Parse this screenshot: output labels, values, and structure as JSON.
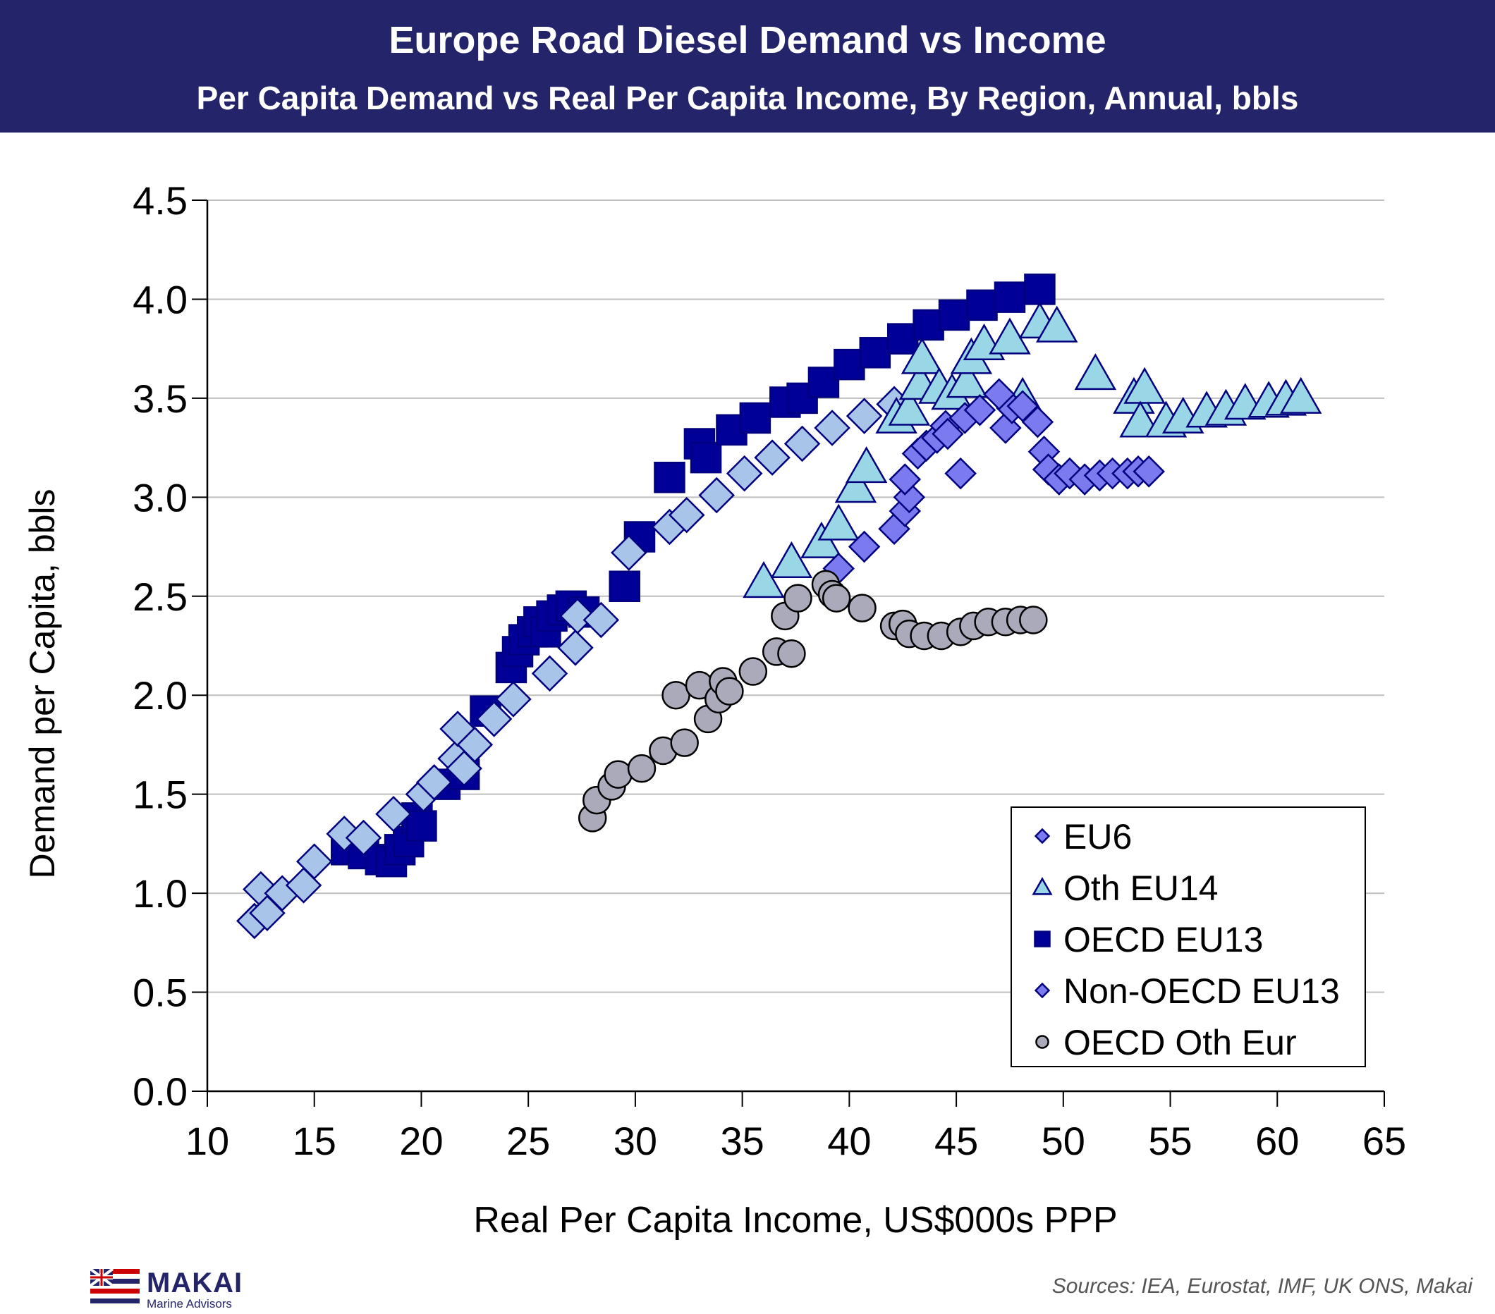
{
  "header": {
    "title": "Europe Road Diesel Demand vs Income",
    "subtitle": "Per Capita Demand vs Real Per Capita Income, By Region, Annual, bbls"
  },
  "footer": {
    "logo_name": "MAKAI",
    "logo_tagline": "Marine Advisors",
    "sources": "Sources: IEA, Eurostat, IMF, UK ONS, Makai"
  },
  "colors": {
    "header_bg": "#24246b",
    "eu6": "#7b7bef",
    "oth_eu14": "#99d6e6",
    "oecd_eu13": "#000099",
    "non_oecd_eu13": "#a9c4e9",
    "oecd_oth_eur": "#aaaabb",
    "marker_stroke": "#00007f"
  },
  "chart_data": {
    "type": "scatter",
    "title": "Europe Road Diesel Demand vs Income",
    "subtitle": "Per Capita Demand vs Real Per Capita Income, By Region, Annual, bbls",
    "xlabel": "Real Per Capita Income, US$000s PPP",
    "ylabel": "Demand per Capita, bbls",
    "xlim": [
      10,
      65
    ],
    "ylim": [
      0,
      4.5
    ],
    "x_ticks": [
      "10",
      "15",
      "20",
      "25",
      "30",
      "35",
      "40",
      "45",
      "50",
      "55",
      "60",
      "65"
    ],
    "y_ticks": [
      "0.0",
      "0.5",
      "1.0",
      "1.5",
      "2.0",
      "2.5",
      "3.0",
      "3.5",
      "4.0",
      "4.5"
    ],
    "grid": "horizontal",
    "legend_position": "bottom-right",
    "series": [
      {
        "name": "OECD EU13",
        "marker": "square",
        "points": [
          [
            16.5,
            1.22
          ],
          [
            17.3,
            1.2
          ],
          [
            18.1,
            1.17
          ],
          [
            18.6,
            1.16
          ],
          [
            19.0,
            1.22
          ],
          [
            19.4,
            1.26
          ],
          [
            19.8,
            1.38
          ],
          [
            20.0,
            1.34
          ],
          [
            21.1,
            1.55
          ],
          [
            22.0,
            1.6
          ],
          [
            23.0,
            1.92
          ],
          [
            24.2,
            2.14
          ],
          [
            24.5,
            2.22
          ],
          [
            24.8,
            2.28
          ],
          [
            25.2,
            2.32
          ],
          [
            25.5,
            2.37
          ],
          [
            25.8,
            2.32
          ],
          [
            26.1,
            2.4
          ],
          [
            26.6,
            2.43
          ],
          [
            27.0,
            2.45
          ],
          [
            27.6,
            2.42
          ],
          [
            29.5,
            2.55
          ],
          [
            30.2,
            2.8
          ],
          [
            31.6,
            3.1
          ],
          [
            33.0,
            3.27
          ],
          [
            33.3,
            3.2
          ],
          [
            34.5,
            3.34
          ],
          [
            35.6,
            3.4
          ],
          [
            37.0,
            3.48
          ],
          [
            37.8,
            3.5
          ],
          [
            38.8,
            3.58
          ],
          [
            40.0,
            3.67
          ],
          [
            41.2,
            3.73
          ],
          [
            42.5,
            3.8
          ],
          [
            43.7,
            3.87
          ],
          [
            44.9,
            3.92
          ],
          [
            46.2,
            3.97
          ],
          [
            47.5,
            4.01
          ],
          [
            48.9,
            4.05
          ]
        ]
      },
      {
        "name": "Non-OECD EU13",
        "marker": "diamond",
        "points": [
          [
            12.2,
            0.86
          ],
          [
            12.5,
            1.02
          ],
          [
            12.8,
            0.9
          ],
          [
            13.5,
            1.0
          ],
          [
            14.5,
            1.04
          ],
          [
            15.0,
            1.16
          ],
          [
            16.4,
            1.3
          ],
          [
            17.3,
            1.28
          ],
          [
            18.7,
            1.4
          ],
          [
            20.1,
            1.5
          ],
          [
            20.6,
            1.56
          ],
          [
            21.6,
            1.68
          ],
          [
            22.0,
            1.63
          ],
          [
            21.7,
            1.83
          ],
          [
            22.5,
            1.75
          ],
          [
            23.4,
            1.88
          ],
          [
            24.3,
            1.98
          ],
          [
            26.0,
            2.11
          ],
          [
            27.2,
            2.24
          ],
          [
            27.3,
            2.4
          ],
          [
            28.4,
            2.38
          ],
          [
            29.7,
            2.72
          ],
          [
            31.6,
            2.85
          ],
          [
            32.4,
            2.91
          ],
          [
            33.8,
            3.01
          ],
          [
            35.1,
            3.12
          ],
          [
            36.4,
            3.2
          ],
          [
            37.8,
            3.27
          ],
          [
            39.2,
            3.35
          ],
          [
            40.7,
            3.41
          ],
          [
            42.1,
            3.47
          ]
        ]
      },
      {
        "name": "Oth EU14",
        "marker": "triangle",
        "points": [
          [
            36.0,
            2.57
          ],
          [
            37.3,
            2.67
          ],
          [
            38.7,
            2.77
          ],
          [
            39.5,
            2.86
          ],
          [
            40.3,
            3.05
          ],
          [
            40.8,
            3.15
          ],
          [
            42.2,
            3.4
          ],
          [
            42.8,
            3.44
          ],
          [
            43.3,
            3.57
          ],
          [
            43.4,
            3.7
          ],
          [
            44.2,
            3.55
          ],
          [
            44.8,
            3.52
          ],
          [
            45.5,
            3.58
          ],
          [
            45.7,
            3.7
          ],
          [
            46.3,
            3.77
          ],
          [
            47.5,
            3.8
          ],
          [
            48.9,
            3.88
          ],
          [
            49.7,
            3.86
          ],
          [
            48.1,
            3.5
          ],
          [
            51.5,
            3.62
          ],
          [
            53.3,
            3.5
          ],
          [
            53.8,
            3.55
          ],
          [
            53.6,
            3.38
          ],
          [
            54.8,
            3.38
          ],
          [
            55.6,
            3.4
          ],
          [
            56.7,
            3.43
          ],
          [
            57.6,
            3.44
          ],
          [
            58.5,
            3.47
          ],
          [
            59.6,
            3.48
          ],
          [
            60.4,
            3.49
          ],
          [
            61.1,
            3.5
          ]
        ]
      },
      {
        "name": "EU6",
        "marker": "diamond",
        "points": [
          [
            39.5,
            2.64
          ],
          [
            40.7,
            2.75
          ],
          [
            42.1,
            2.84
          ],
          [
            42.6,
            2.93
          ],
          [
            42.8,
            3.0
          ],
          [
            42.6,
            3.09
          ],
          [
            43.2,
            3.22
          ],
          [
            43.6,
            3.26
          ],
          [
            44.1,
            3.3
          ],
          [
            44.5,
            3.36
          ],
          [
            44.6,
            3.32
          ],
          [
            45.4,
            3.4
          ],
          [
            45.2,
            3.12
          ],
          [
            46.1,
            3.44
          ],
          [
            47.3,
            3.35
          ],
          [
            47.6,
            3.45
          ],
          [
            48.8,
            3.38
          ],
          [
            49.1,
            3.23
          ],
          [
            49.3,
            3.14
          ],
          [
            49.8,
            3.09
          ],
          [
            50.3,
            3.12
          ],
          [
            51.0,
            3.09
          ],
          [
            51.7,
            3.11
          ],
          [
            52.3,
            3.12
          ],
          [
            53.0,
            3.12
          ],
          [
            53.5,
            3.13
          ],
          [
            54.0,
            3.13
          ],
          [
            47.0,
            3.52
          ],
          [
            48.1,
            3.46
          ]
        ]
      },
      {
        "name": "OECD Oth Eur",
        "marker": "circle",
        "points": [
          [
            28.0,
            1.38
          ],
          [
            28.2,
            1.47
          ],
          [
            28.9,
            1.54
          ],
          [
            29.2,
            1.6
          ],
          [
            30.3,
            1.63
          ],
          [
            31.3,
            1.72
          ],
          [
            32.3,
            1.76
          ],
          [
            31.9,
            2.0
          ],
          [
            33.0,
            2.05
          ],
          [
            33.4,
            1.88
          ],
          [
            33.9,
            1.98
          ],
          [
            34.1,
            2.07
          ],
          [
            34.4,
            2.02
          ],
          [
            35.5,
            2.12
          ],
          [
            36.6,
            2.22
          ],
          [
            37.0,
            2.4
          ],
          [
            37.3,
            2.21
          ],
          [
            37.6,
            2.49
          ],
          [
            38.9,
            2.56
          ],
          [
            39.2,
            2.51
          ],
          [
            39.4,
            2.49
          ],
          [
            40.6,
            2.44
          ],
          [
            42.1,
            2.35
          ],
          [
            42.5,
            2.36
          ],
          [
            42.8,
            2.31
          ],
          [
            43.5,
            2.3
          ],
          [
            44.3,
            2.3
          ],
          [
            45.2,
            2.32
          ],
          [
            45.8,
            2.35
          ],
          [
            46.5,
            2.37
          ],
          [
            47.3,
            2.37
          ],
          [
            48.0,
            2.38
          ],
          [
            48.6,
            2.38
          ]
        ]
      }
    ],
    "legend": [
      {
        "label": "EU6",
        "marker": "diamond"
      },
      {
        "label": "Oth EU14",
        "marker": "triangle"
      },
      {
        "label": "OECD EU13",
        "marker": "square"
      },
      {
        "label": "Non-OECD EU13",
        "marker": "diamond"
      },
      {
        "label": "OECD Oth Eur",
        "marker": "circle"
      }
    ]
  }
}
